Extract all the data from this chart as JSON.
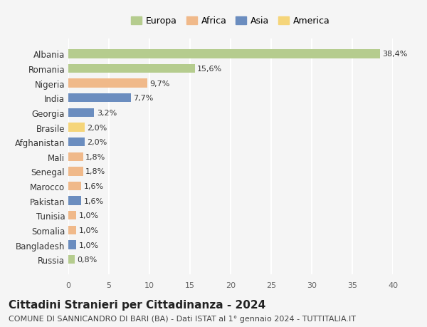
{
  "countries": [
    "Albania",
    "Romania",
    "Nigeria",
    "India",
    "Georgia",
    "Brasile",
    "Afghanistan",
    "Mali",
    "Senegal",
    "Marocco",
    "Pakistan",
    "Tunisia",
    "Somalia",
    "Bangladesh",
    "Russia"
  ],
  "values": [
    38.4,
    15.6,
    9.7,
    7.7,
    3.2,
    2.0,
    2.0,
    1.8,
    1.8,
    1.6,
    1.6,
    1.0,
    1.0,
    1.0,
    0.8
  ],
  "labels": [
    "38,4%",
    "15,6%",
    "9,7%",
    "7,7%",
    "3,2%",
    "2,0%",
    "2,0%",
    "1,8%",
    "1,8%",
    "1,6%",
    "1,6%",
    "1,0%",
    "1,0%",
    "1,0%",
    "0,8%"
  ],
  "continents": [
    "Europa",
    "Europa",
    "Africa",
    "Asia",
    "Asia",
    "America",
    "Asia",
    "Africa",
    "Africa",
    "Africa",
    "Asia",
    "Africa",
    "Africa",
    "Asia",
    "Europa"
  ],
  "colors": {
    "Europa": "#b5cc8e",
    "Africa": "#f0b98a",
    "Asia": "#6b8dbf",
    "America": "#f5d57a"
  },
  "legend_order": [
    "Europa",
    "Africa",
    "Asia",
    "America"
  ],
  "xlim": [
    0,
    40
  ],
  "xticks": [
    0,
    5,
    10,
    15,
    20,
    25,
    30,
    35,
    40
  ],
  "bg_color": "#f5f5f5",
  "grid_color": "#ffffff",
  "title": "Cittadini Stranieri per Cittadinanza - 2024",
  "subtitle": "COMUNE DI SANNICANDRO DI BARI (BA) - Dati ISTAT al 1° gennaio 2024 - TUTTITALIA.IT",
  "title_fontsize": 11,
  "subtitle_fontsize": 8,
  "bar_height": 0.6
}
